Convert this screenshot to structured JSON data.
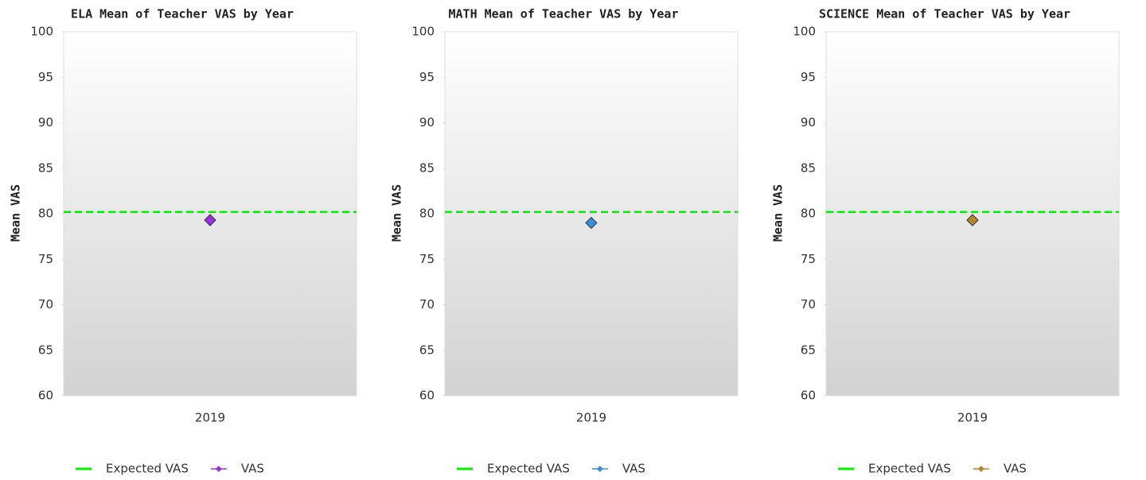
{
  "chart_data": [
    {
      "type": "line",
      "title": "ELA Mean of Teacher VAS by Year",
      "y_label": "Mean VAS",
      "categories": [
        "2019"
      ],
      "series": [
        {
          "name": "Expected VAS",
          "color": "#00ee00",
          "values": [
            80.2
          ],
          "style": "reference"
        },
        {
          "name": "VAS",
          "color": "#9b30e0",
          "values": [
            79.3
          ]
        }
      ],
      "ylim": [
        60,
        100
      ],
      "yticks": [
        60,
        65,
        70,
        75,
        80,
        85,
        90,
        95,
        100
      ]
    },
    {
      "type": "line",
      "title": "MATH Mean of Teacher VAS by Year",
      "y_label": "Mean VAS",
      "categories": [
        "2019"
      ],
      "series": [
        {
          "name": "Expected VAS",
          "color": "#00ee00",
          "values": [
            80.2
          ],
          "style": "reference"
        },
        {
          "name": "VAS",
          "color": "#3a8de0",
          "values": [
            79.0
          ]
        }
      ],
      "ylim": [
        60,
        100
      ],
      "yticks": [
        60,
        65,
        70,
        75,
        80,
        85,
        90,
        95,
        100
      ]
    },
    {
      "type": "line",
      "title": "SCIENCE Mean of Teacher VAS by Year",
      "y_label": "Mean VAS",
      "categories": [
        "2019"
      ],
      "series": [
        {
          "name": "Expected VAS",
          "color": "#00ee00",
          "values": [
            80.2
          ],
          "style": "reference"
        },
        {
          "name": "VAS",
          "color": "#b8862a",
          "values": [
            79.3
          ]
        }
      ],
      "ylim": [
        60,
        100
      ],
      "yticks": [
        60,
        65,
        70,
        75,
        80,
        85,
        90,
        95,
        100
      ]
    }
  ]
}
